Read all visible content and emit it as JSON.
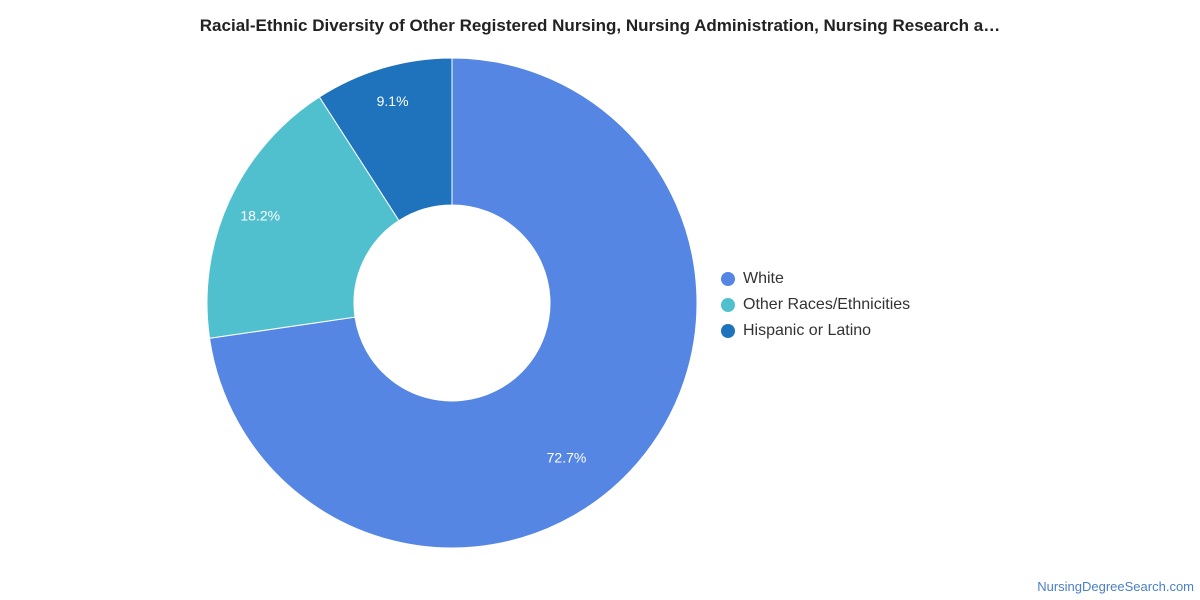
{
  "title": "Racial-Ethnic Diversity of Other Registered Nursing, Nursing Administration, Nursing Research a…",
  "watermark": "NursingDegreeSearch.com",
  "chart_data": {
    "type": "pie",
    "variant": "donut",
    "title": "Racial-Ethnic Diversity of Other Registered Nursing, Nursing Administration, Nursing Research a…",
    "legend_position": "right",
    "slices": [
      {
        "name": "White",
        "value": 72.7,
        "label": "72.7%",
        "color": "#5586e3"
      },
      {
        "name": "Other Races/Ethnicities",
        "value": 18.2,
        "label": "18.2%",
        "color": "#50c0ce"
      },
      {
        "name": "Hispanic or Latino",
        "value": 9.1,
        "label": "9.1%",
        "color": "#1e73bc"
      }
    ]
  }
}
